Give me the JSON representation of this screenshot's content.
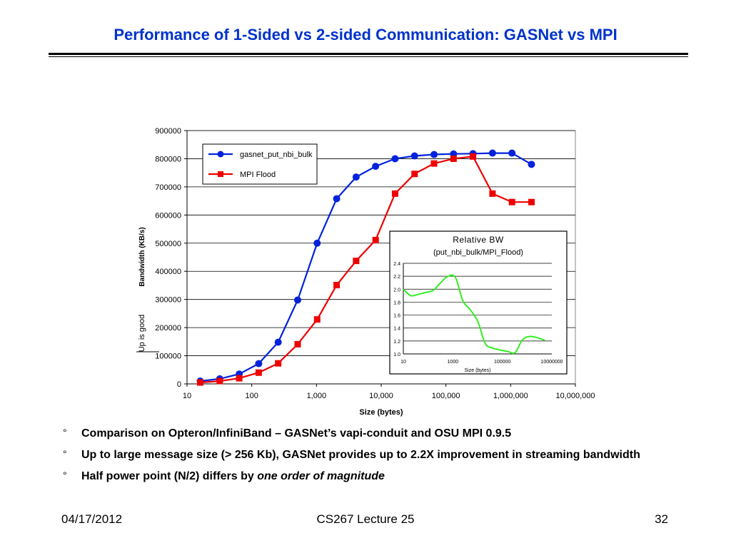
{
  "slide": {
    "title": "Performance of 1-Sided vs 2-sided Communication: GASNet vs MPI",
    "bullets": [
      {
        "text": "Comparison on Opteron/InfiniBand – GASNet’s vapi-conduit and OSU MPI 0.9.5",
        "emphasis": ""
      },
      {
        "text": "Up to large message size (> 256 Kb), GASNet provides up to 2.2X improvement in streaming bandwidth",
        "emphasis": ""
      },
      {
        "text": "Half power point (N/2) differs by ",
        "emphasis": "one order of magnitude"
      }
    ],
    "bullet_marker": "°",
    "footer": {
      "date": "04/17/2012",
      "course": "CS267 Lecture 25",
      "page": "32"
    }
  },
  "chart_data": [
    {
      "type": "line",
      "title": "",
      "xlabel": "Size (bytes)",
      "ylabel": "Bandwidth (KB/s)",
      "yannotation": "Up is good",
      "xscale": "log",
      "xlim": [
        10,
        10000000
      ],
      "ylim": [
        0,
        900000
      ],
      "xticks": [
        "10",
        "100",
        "1,000",
        "10,000",
        "100,000",
        "1,000,000",
        "10,000,000"
      ],
      "yticks": [
        "0",
        "100000",
        "200000",
        "300000",
        "400000",
        "500000",
        "600000",
        "700000",
        "800000",
        "900000"
      ],
      "grid": true,
      "legend": "top-left",
      "series": [
        {
          "name": "gasnet_put_nbi_bulk",
          "color": "#0022dd",
          "marker": "circle",
          "x": [
            16,
            32,
            64,
            128,
            256,
            512,
            1024,
            2048,
            4096,
            8192,
            16384,
            32768,
            65536,
            131072,
            262144,
            524288,
            1048576,
            2097152
          ],
          "y": [
            10000,
            18000,
            35000,
            72000,
            148000,
            298000,
            500000,
            658000,
            735000,
            773000,
            800000,
            810000,
            815000,
            817000,
            818000,
            820000,
            820000,
            780000
          ]
        },
        {
          "name": "MPI Flood",
          "color": "#ee0000",
          "marker": "square",
          "x": [
            16,
            32,
            64,
            128,
            256,
            512,
            1024,
            2048,
            4096,
            8192,
            16384,
            32768,
            65536,
            131072,
            262144,
            524288,
            1048576,
            2097152
          ],
          "y": [
            5000,
            10000,
            20000,
            40000,
            73000,
            141000,
            229000,
            351000,
            437000,
            511000,
            676000,
            746000,
            783000,
            800000,
            808000,
            676000,
            646000,
            646000
          ]
        }
      ]
    },
    {
      "type": "line",
      "title": "Relative BW",
      "subtitle": "(put_nbi_bulk/MPI_Flood)",
      "xlabel": "Size (bytes)",
      "xscale": "log",
      "xlim": [
        10,
        10000000
      ],
      "ylim": [
        1.0,
        2.4
      ],
      "xticks": [
        "10",
        "1000",
        "100000",
        "10000000"
      ],
      "yticks": [
        "1.0",
        "1.2",
        "1.4",
        "1.6",
        "1.8",
        "2.0",
        "2.2",
        "2.4"
      ],
      "grid": true,
      "series": [
        {
          "color": "#33ee22",
          "x": [
            10,
            20,
            40,
            80,
            160,
            320,
            640,
            1280,
            2560,
            5120,
            10240,
            20480,
            40960,
            81920,
            163840,
            327680,
            655360,
            1310720,
            2621440,
            5242880
          ],
          "y": [
            2.0,
            1.9,
            1.92,
            1.95,
            1.98,
            2.1,
            2.2,
            2.18,
            1.82,
            1.68,
            1.5,
            1.16,
            1.09,
            1.06,
            1.04,
            1.02,
            1.22,
            1.27,
            1.25,
            1.21
          ]
        }
      ]
    }
  ]
}
